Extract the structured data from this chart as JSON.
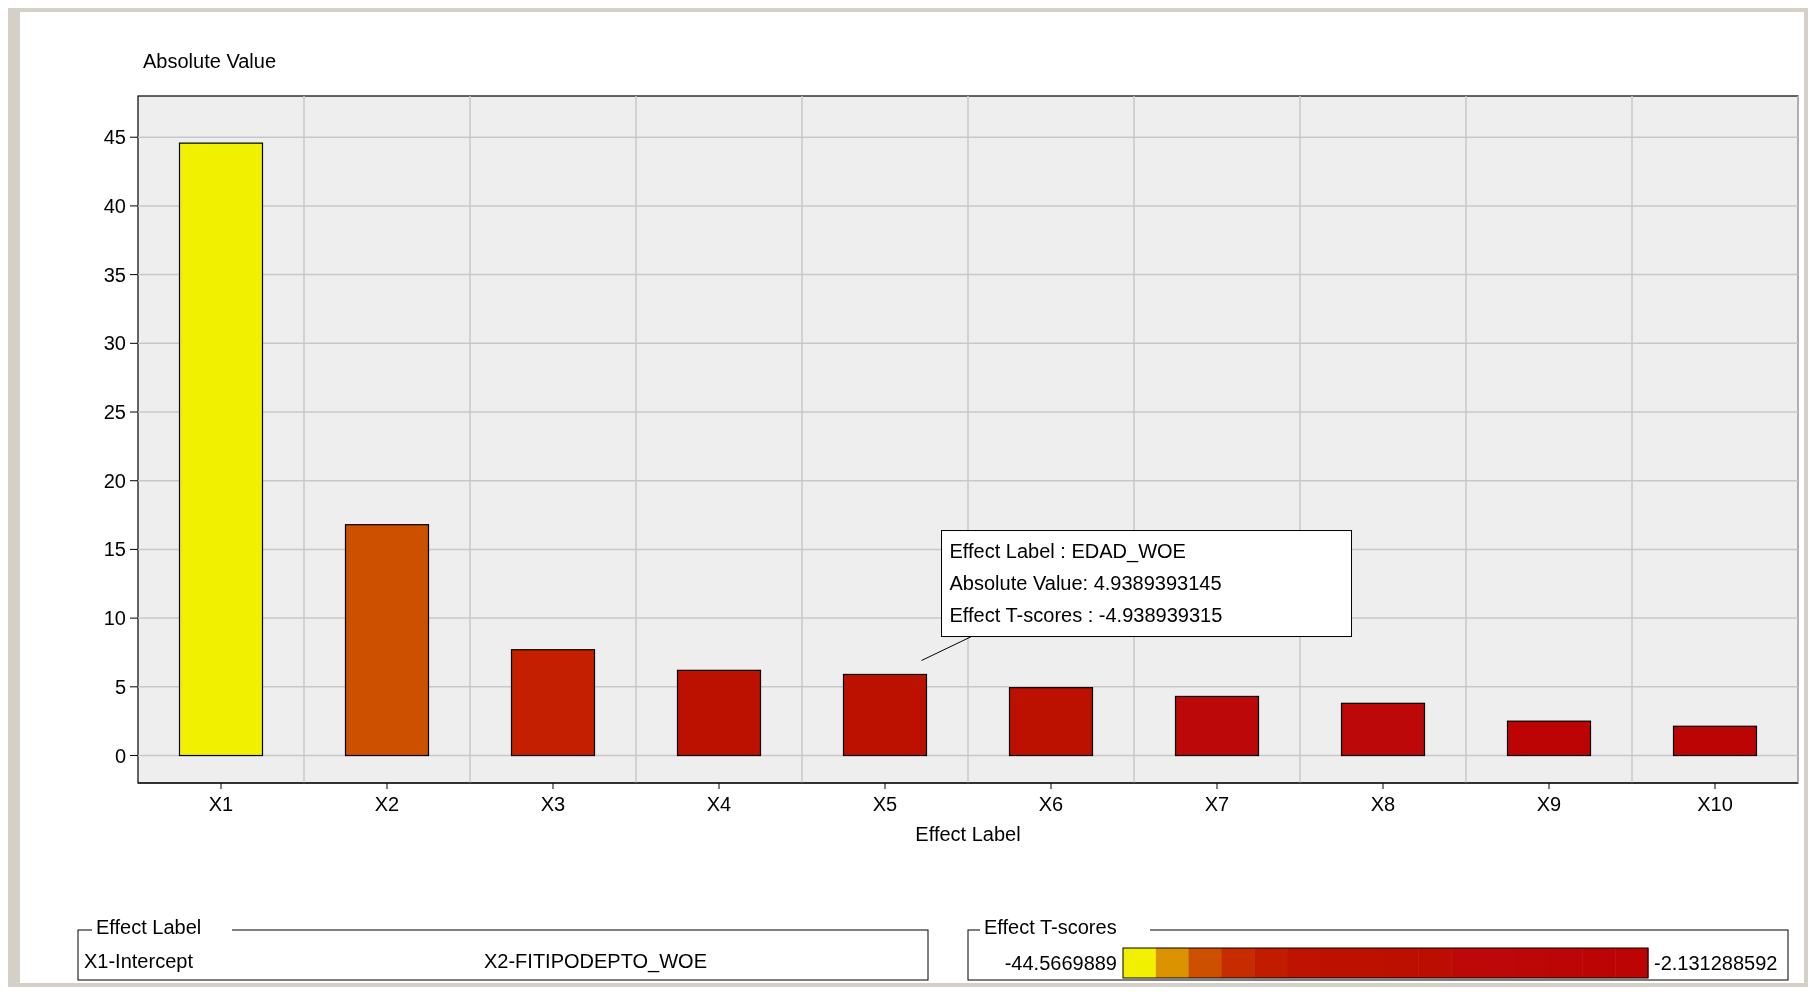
{
  "chart_data": {
    "type": "bar",
    "ylabel": "Absolute Value",
    "xlabel": "Effect Label",
    "categories": [
      "X1",
      "X2",
      "X3",
      "X4",
      "X5",
      "X6",
      "X7",
      "X8",
      "X9",
      "X10"
    ],
    "values": [
      44.57,
      16.8,
      7.7,
      6.2,
      5.9,
      4.94,
      4.3,
      3.8,
      2.5,
      2.13
    ],
    "colors": [
      "#f0f000",
      "#cc5000",
      "#c42000",
      "#bc1000",
      "#bc1000",
      "#bc1000",
      "#bc0808",
      "#bc0808",
      "#bc0404",
      "#bc0404"
    ],
    "ylim": [
      -2,
      48
    ],
    "yticks": [
      0,
      5,
      10,
      15,
      20,
      25,
      30,
      35,
      40,
      45
    ],
    "grid": true,
    "legend_title": "Effect Label",
    "clabel": "Effect T-scores",
    "clim": [
      -44.5669889,
      -2.131288592
    ],
    "cticks": [
      -44.5669889,
      -2.131288592
    ],
    "annotations": [
      "Effect Label : EDAD_WOE",
      "Absolute Value: 4.9389393145",
      "Effect T-scores : -4.938939315",
      "X1-Intercept",
      "X2-FITIPODEPTO_WOE"
    ]
  }
}
